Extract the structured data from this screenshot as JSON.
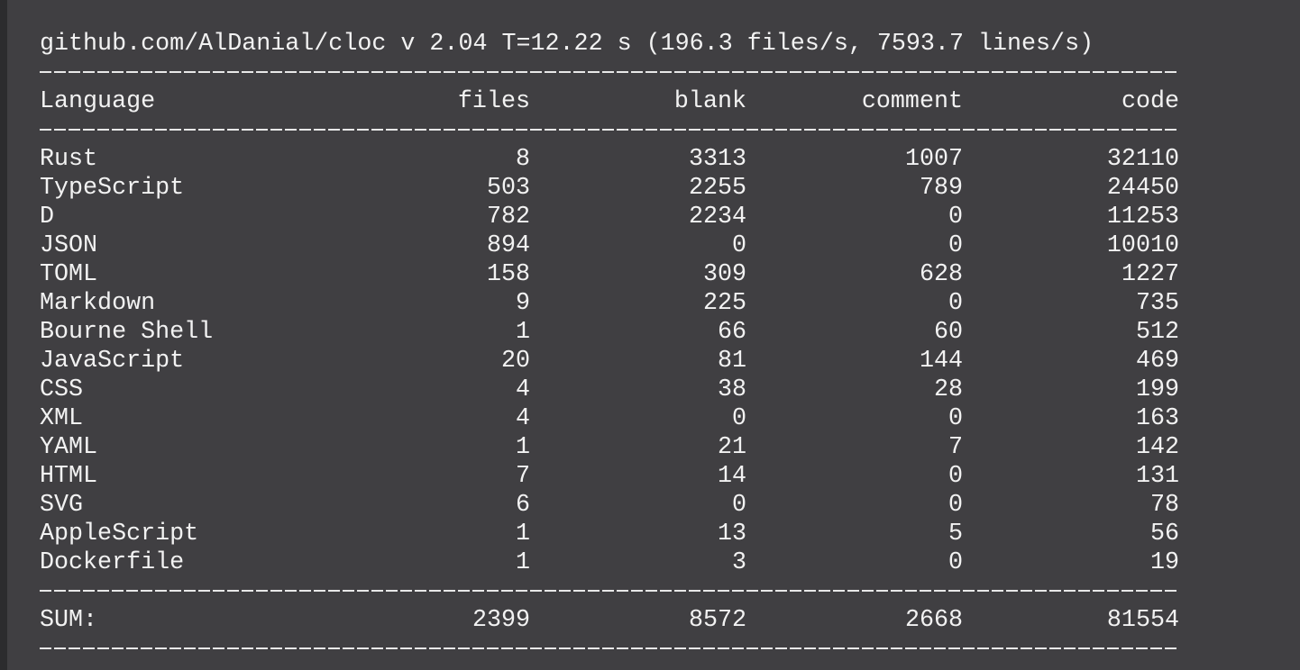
{
  "header": {
    "text": "github.com/AlDanial/cloc v 2.04  T=12.22 s (196.3 files/s, 7593.7 lines/s)"
  },
  "table": {
    "columns": [
      "Language",
      "files",
      "blank",
      "comment",
      "code"
    ],
    "rows": [
      [
        "Rust",
        8,
        3313,
        1007,
        32110
      ],
      [
        "TypeScript",
        503,
        2255,
        789,
        24450
      ],
      [
        "D",
        782,
        2234,
        0,
        11253
      ],
      [
        "JSON",
        894,
        0,
        0,
        10010
      ],
      [
        "TOML",
        158,
        309,
        628,
        1227
      ],
      [
        "Markdown",
        9,
        225,
        0,
        735
      ],
      [
        "Bourne Shell",
        1,
        66,
        60,
        512
      ],
      [
        "JavaScript",
        20,
        81,
        144,
        469
      ],
      [
        "CSS",
        4,
        38,
        28,
        199
      ],
      [
        "XML",
        4,
        0,
        0,
        163
      ],
      [
        "YAML",
        1,
        21,
        7,
        142
      ],
      [
        "HTML",
        7,
        14,
        0,
        131
      ],
      [
        "SVG",
        6,
        0,
        0,
        78
      ],
      [
        "AppleScript",
        1,
        13,
        5,
        56
      ],
      [
        "Dockerfile",
        1,
        3,
        0,
        19
      ]
    ],
    "sum": [
      "SUM:",
      2399,
      8572,
      2668,
      81554
    ]
  }
}
